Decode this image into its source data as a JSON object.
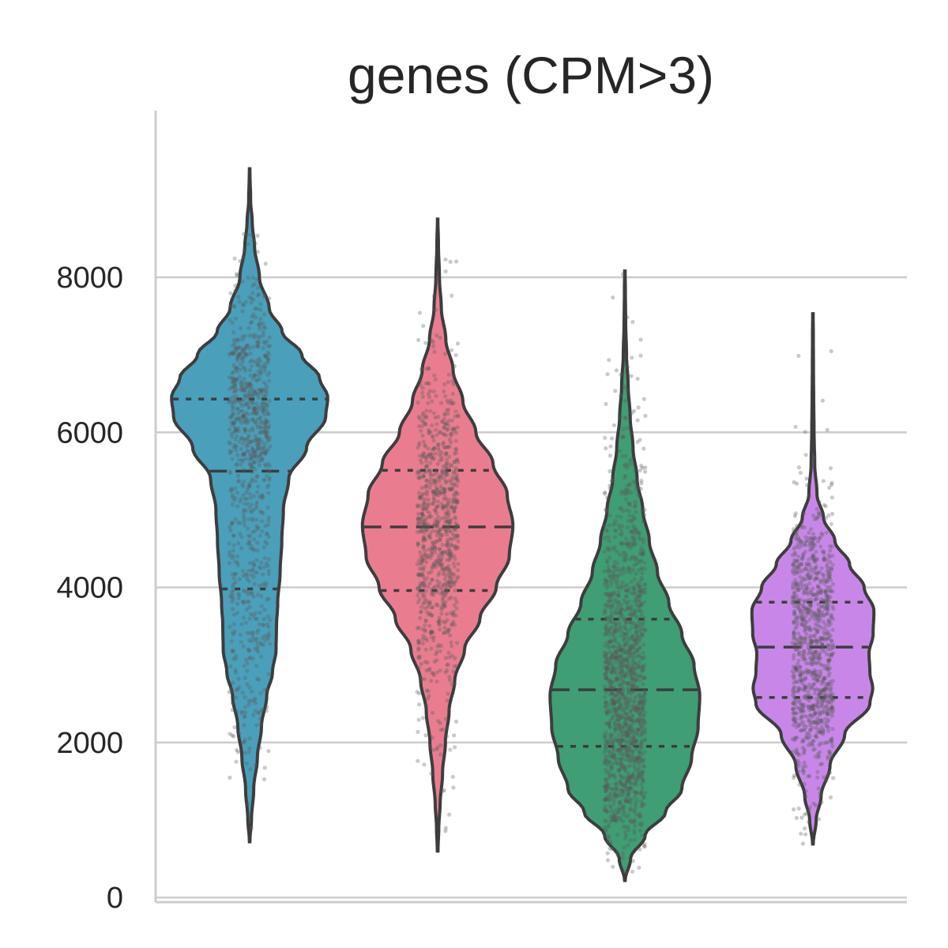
{
  "chart_data": {
    "type": "violin",
    "title": "genes (CPM>3)",
    "xlabel": "",
    "ylabel": "",
    "ylim": [
      -60,
      10150
    ],
    "yticks": [
      0,
      2000,
      4000,
      6000,
      8000
    ],
    "grid": true,
    "point_color": "#5a5a5a",
    "line_color": "#3d3d3d",
    "series": [
      {
        "color": "#4a9fba",
        "min": 720,
        "max": 9400,
        "q1": 3980,
        "median": 5500,
        "q3": 6430,
        "point_count": 900,
        "density": [
          [
            720,
            0.003
          ],
          [
            1000,
            0.022
          ],
          [
            1400,
            0.05
          ],
          [
            1800,
            0.095
          ],
          [
            2200,
            0.145
          ],
          [
            2600,
            0.21
          ],
          [
            2900,
            0.28
          ],
          [
            3200,
            0.325
          ],
          [
            3500,
            0.33
          ],
          [
            3800,
            0.345
          ],
          [
            4200,
            0.375
          ],
          [
            4600,
            0.395
          ],
          [
            5000,
            0.415
          ],
          [
            5400,
            0.48
          ],
          [
            5800,
            0.7
          ],
          [
            6200,
            0.935
          ],
          [
            6450,
            0.96
          ],
          [
            6700,
            0.86
          ],
          [
            7000,
            0.64
          ],
          [
            7300,
            0.4
          ],
          [
            7600,
            0.24
          ],
          [
            8000,
            0.12
          ],
          [
            8400,
            0.06
          ],
          [
            8700,
            0.032
          ],
          [
            9000,
            0.012
          ],
          [
            9400,
            0.003
          ]
        ]
      },
      {
        "color": "#e97d8f",
        "min": 600,
        "max": 8750,
        "q1": 3960,
        "median": 4780,
        "q3": 5510,
        "point_count": 900,
        "density": [
          [
            600,
            0.004
          ],
          [
            900,
            0.014
          ],
          [
            1200,
            0.03
          ],
          [
            1600,
            0.06
          ],
          [
            2000,
            0.095
          ],
          [
            2400,
            0.14
          ],
          [
            2800,
            0.21
          ],
          [
            3200,
            0.33
          ],
          [
            3600,
            0.52
          ],
          [
            4000,
            0.72
          ],
          [
            4400,
            0.88
          ],
          [
            4800,
            0.925
          ],
          [
            5200,
            0.855
          ],
          [
            5600,
            0.68
          ],
          [
            6000,
            0.47
          ],
          [
            6400,
            0.31
          ],
          [
            6800,
            0.19
          ],
          [
            7200,
            0.1
          ],
          [
            7600,
            0.045
          ],
          [
            8000,
            0.022
          ],
          [
            8400,
            0.01
          ],
          [
            8750,
            0.003
          ]
        ]
      },
      {
        "color": "#3f9e73",
        "min": 220,
        "max": 8080,
        "q1": 1950,
        "median": 2680,
        "q3": 3590,
        "point_count": 1500,
        "density": [
          [
            220,
            0.004
          ],
          [
            500,
            0.07
          ],
          [
            800,
            0.25
          ],
          [
            1100,
            0.5
          ],
          [
            1400,
            0.7
          ],
          [
            1800,
            0.82
          ],
          [
            2200,
            0.9
          ],
          [
            2600,
            0.92
          ],
          [
            3000,
            0.85
          ],
          [
            3400,
            0.7
          ],
          [
            3800,
            0.54
          ],
          [
            4200,
            0.4
          ],
          [
            4600,
            0.3
          ],
          [
            5000,
            0.22
          ],
          [
            5400,
            0.15
          ],
          [
            5800,
            0.1
          ],
          [
            6200,
            0.065
          ],
          [
            6600,
            0.04
          ],
          [
            7000,
            0.02
          ],
          [
            7400,
            0.01
          ],
          [
            7800,
            0.006
          ],
          [
            8080,
            0.003
          ]
        ]
      },
      {
        "color": "#c887e8",
        "min": 690,
        "max": 7530,
        "q1": 2580,
        "median": 3230,
        "q3": 3810,
        "point_count": 1000,
        "density": [
          [
            690,
            0.004
          ],
          [
            1000,
            0.04
          ],
          [
            1300,
            0.1
          ],
          [
            1700,
            0.21
          ],
          [
            2100,
            0.39
          ],
          [
            2500,
            0.7
          ],
          [
            2700,
            0.735
          ],
          [
            2900,
            0.7
          ],
          [
            3150,
            0.69
          ],
          [
            3400,
            0.74
          ],
          [
            3700,
            0.75
          ],
          [
            4000,
            0.63
          ],
          [
            4300,
            0.45
          ],
          [
            4600,
            0.27
          ],
          [
            4900,
            0.13
          ],
          [
            5200,
            0.05
          ],
          [
            5600,
            0.022
          ],
          [
            6000,
            0.014
          ],
          [
            6400,
            0.01
          ],
          [
            6800,
            0.007
          ],
          [
            7200,
            0.005
          ],
          [
            7530,
            0.003
          ]
        ]
      }
    ]
  }
}
